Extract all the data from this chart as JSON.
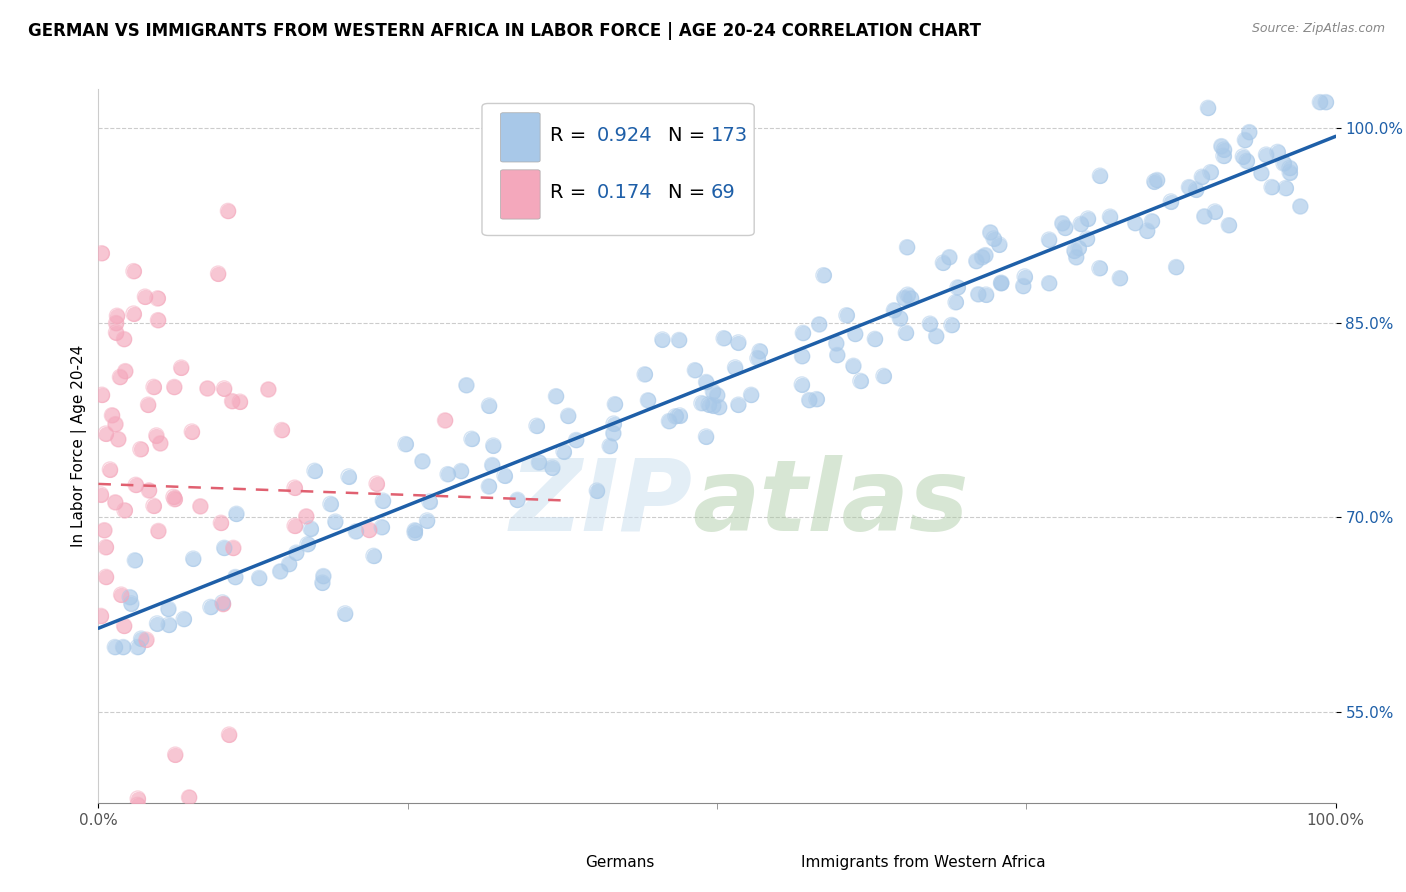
{
  "title": "GERMAN VS IMMIGRANTS FROM WESTERN AFRICA IN LABOR FORCE | AGE 20-24 CORRELATION CHART",
  "source": "Source: ZipAtlas.com",
  "ylabel": "In Labor Force | Age 20-24",
  "xlim": [
    0.0,
    1.0
  ],
  "ylim": [
    0.48,
    1.03
  ],
  "yticks": [
    0.55,
    0.7,
    0.85,
    1.0
  ],
  "ytick_labels": [
    "55.0%",
    "70.0%",
    "85.0%",
    "100.0%"
  ],
  "xticks": [
    0.0,
    1.0
  ],
  "xtick_labels": [
    "0.0%",
    "100.0%"
  ],
  "legend_labels": [
    "Germans",
    "Immigrants from Western Africa"
  ],
  "blue_R": 0.924,
  "blue_N": 173,
  "pink_R": 0.174,
  "pink_N": 69,
  "blue_color": "#a8c8e8",
  "pink_color": "#f4a8bc",
  "blue_line_color": "#1e5fa8",
  "pink_line_color": "#e06070",
  "title_fontsize": 12,
  "axis_label_fontsize": 11,
  "tick_fontsize": 11,
  "legend_fontsize": 14
}
